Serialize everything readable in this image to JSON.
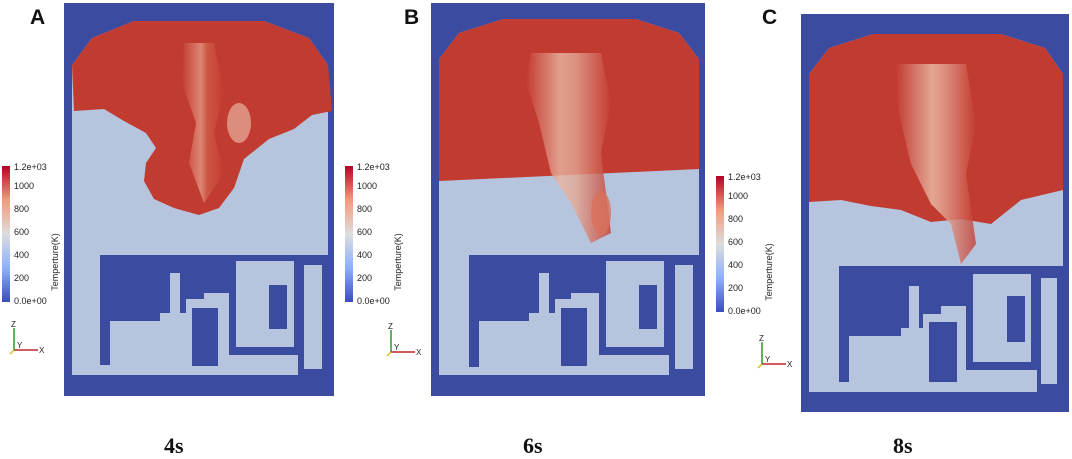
{
  "panels": [
    {
      "letter": "A",
      "time": "4s",
      "colorbar": {
        "title": "Temperture(K)",
        "ticks": [
          "1.2e+03",
          "1000",
          "800",
          "600",
          "400",
          "200",
          "0.0e+00"
        ]
      },
      "axes": {
        "z": "Z",
        "y": "Y",
        "x": "X"
      }
    },
    {
      "letter": "B",
      "time": "6s",
      "colorbar": {
        "title": "Temperture(K)",
        "ticks": [
          "1.2e+03",
          "1000",
          "800",
          "600",
          "400",
          "200",
          "0.0e+00"
        ]
      },
      "axes": {
        "z": "Z",
        "y": "Y",
        "x": "X"
      }
    },
    {
      "letter": "C",
      "time": "8s",
      "colorbar": {
        "title": "Temperture(K)",
        "ticks": [
          "1.2e+03",
          "1000",
          "800",
          "600",
          "400",
          "200",
          "0.0e+00"
        ]
      },
      "axes": {
        "z": "Z",
        "y": "Y",
        "x": "X"
      }
    }
  ],
  "colors": {
    "background_blue": "#3a4ba0",
    "hot_red": "#c0392f",
    "cool_gray": "#b9c7de",
    "warm_pink": "#e8b8a4",
    "colorbar_stops": [
      "#3b4cc0",
      "#8db0fe",
      "#dddddd",
      "#f49a7b",
      "#b40426"
    ]
  }
}
